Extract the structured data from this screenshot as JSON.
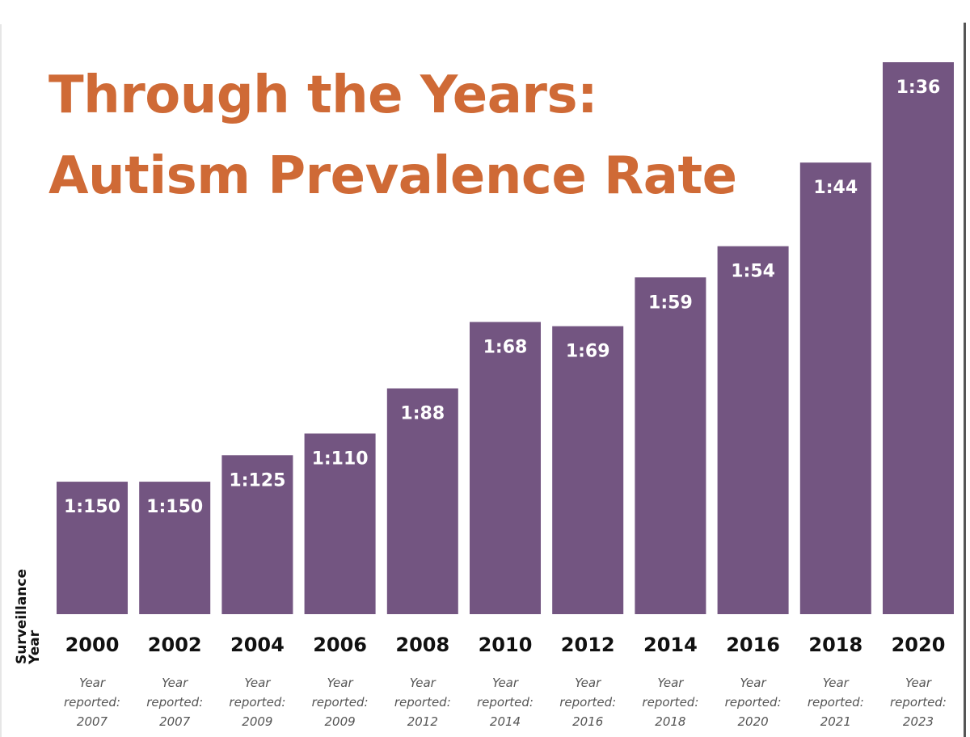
{
  "chart_data": {
    "type": "bar",
    "title": "Through the Years: Autism Prevalence Rate",
    "title_lines": [
      "Through the Years:",
      "Autism Prevalence Rate"
    ],
    "xlabel": "Surveillance Year",
    "xlabel_lines": [
      "Surveillance",
      "Year"
    ],
    "ylabel": "",
    "categories": [
      "2000",
      "2002",
      "2004",
      "2006",
      "2008",
      "2010",
      "2012",
      "2014",
      "2016",
      "2018",
      "2020"
    ],
    "labels": [
      "1:150",
      "1:150",
      "1:125",
      "1:110",
      "1:88",
      "1:68",
      "1:69",
      "1:59",
      "1:54",
      "1:44",
      "1:36"
    ],
    "denominators": [
      150,
      150,
      125,
      110,
      88,
      68,
      69,
      59,
      54,
      44,
      36
    ],
    "reported_prefix": [
      "Year",
      "reported:"
    ],
    "reported_years": [
      "2007",
      "2007",
      "2009",
      "2009",
      "2012",
      "2014",
      "2016",
      "2018",
      "2020",
      "2021",
      "2023"
    ],
    "bar_color": "#735581",
    "title_color": "#cf6a36",
    "grid": false,
    "legend": "none"
  }
}
